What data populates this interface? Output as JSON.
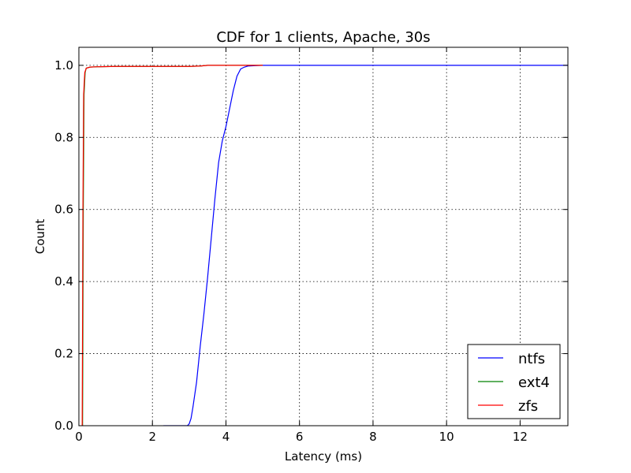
{
  "chart_data": {
    "type": "line",
    "title": "CDF for 1 clients, Apache, 30s",
    "xlabel": "Latency (ms)",
    "ylabel": "Count",
    "xlim": [
      0,
      13.3
    ],
    "ylim": [
      0,
      1.05
    ],
    "xticks": [
      0,
      2,
      4,
      6,
      8,
      10,
      12
    ],
    "xtick_labels": [
      "0",
      "2",
      "4",
      "6",
      "8",
      "10",
      "12"
    ],
    "yticks": [
      0.0,
      0.2,
      0.4,
      0.6,
      0.8,
      1.0
    ],
    "ytick_labels": [
      "0.0",
      "0.2",
      "0.4",
      "0.6",
      "0.8",
      "1.0"
    ],
    "grid": true,
    "legend_position": "lower-right",
    "series": [
      {
        "name": "ntfs",
        "color": "#0000ff",
        "x": [
          2.3,
          2.95,
          3.0,
          3.05,
          3.1,
          3.2,
          3.3,
          3.4,
          3.5,
          3.6,
          3.7,
          3.8,
          3.9,
          4.0,
          4.1,
          4.2,
          4.3,
          4.4,
          4.5,
          4.6,
          4.8,
          5.0,
          6.0,
          8.0,
          10.0,
          12.0,
          13.3
        ],
        "y": [
          0.0,
          0.0,
          0.005,
          0.02,
          0.05,
          0.12,
          0.22,
          0.31,
          0.41,
          0.52,
          0.63,
          0.73,
          0.79,
          0.83,
          0.88,
          0.93,
          0.97,
          0.99,
          0.995,
          0.998,
          0.999,
          1.0,
          1.0,
          1.0,
          1.0,
          1.0,
          1.0
        ]
      },
      {
        "name": "ext4",
        "color": "#008000",
        "x": [
          0.1,
          0.12,
          0.14,
          0.17,
          0.2,
          0.3,
          0.5,
          1.0,
          2.0,
          3.0,
          3.3,
          3.5,
          4.0,
          5.0
        ],
        "y": [
          0.0,
          0.6,
          0.92,
          0.98,
          0.992,
          0.995,
          0.996,
          0.997,
          0.997,
          0.997,
          0.998,
          1.0,
          1.0,
          1.0
        ]
      },
      {
        "name": "zfs",
        "color": "#ff0000",
        "x": [
          0.09,
          0.11,
          0.13,
          0.16,
          0.2,
          0.3,
          0.5,
          1.0,
          2.0,
          3.0,
          3.3,
          3.5,
          4.0,
          5.0
        ],
        "y": [
          0.0,
          0.6,
          0.92,
          0.98,
          0.992,
          0.995,
          0.996,
          0.997,
          0.997,
          0.997,
          0.998,
          1.0,
          1.0,
          1.0
        ]
      }
    ]
  }
}
